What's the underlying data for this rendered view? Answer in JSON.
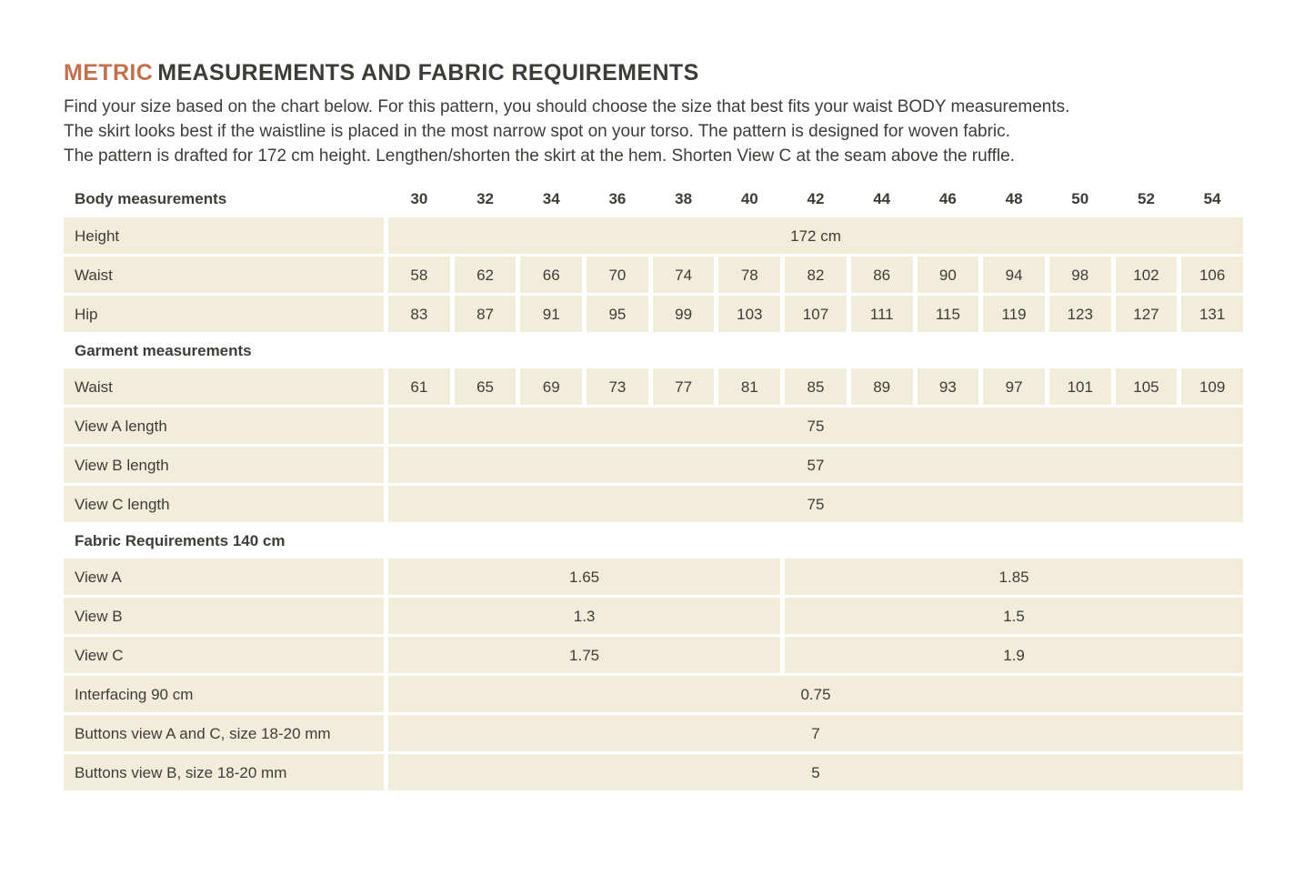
{
  "colors": {
    "accent": "#c1714e",
    "cell_bg": "#f2ecda",
    "text": "#3e3c38"
  },
  "header": {
    "title_accent": "METRIC",
    "title_rest": "MEASUREMENTS AND FABRIC REQUIREMENTS",
    "intro_lines": [
      "Find your size based on the chart below. For this pattern, you should choose the size that best fits your waist BODY measurements.",
      "The skirt looks best if the waistline is placed in the most narrow spot on your torso. The pattern is designed for woven fabric.",
      "The pattern is drafted for 172 cm height. Lengthen/shorten the skirt at the hem. Shorten View C at the seam above the ruffle."
    ]
  },
  "table": {
    "section_headers": {
      "body": "Body measurements",
      "garment": "Garment measurements",
      "fabric": "Fabric Requirements 140 cm"
    },
    "sizes": [
      "30",
      "32",
      "34",
      "36",
      "38",
      "40",
      "42",
      "44",
      "46",
      "48",
      "50",
      "52",
      "54"
    ],
    "rows": {
      "height": {
        "label": "Height",
        "value": "172 cm"
      },
      "body_waist": {
        "label": "Waist",
        "values": [
          "58",
          "62",
          "66",
          "70",
          "74",
          "78",
          "82",
          "86",
          "90",
          "94",
          "98",
          "102",
          "106"
        ]
      },
      "body_hip": {
        "label": "Hip",
        "values": [
          "83",
          "87",
          "91",
          "95",
          "99",
          "103",
          "107",
          "111",
          "115",
          "119",
          "123",
          "127",
          "131"
        ]
      },
      "garment_waist": {
        "label": "Waist",
        "values": [
          "61",
          "65",
          "69",
          "73",
          "77",
          "81",
          "85",
          "89",
          "93",
          "97",
          "101",
          "105",
          "109"
        ]
      },
      "view_a_length": {
        "label": "View A length",
        "value": "75"
      },
      "view_b_length": {
        "label": "View B length",
        "value": "57"
      },
      "view_c_length": {
        "label": "View C length",
        "value": "75"
      },
      "fabric_view_a": {
        "label": "View A",
        "sizes_30_40": "1.65",
        "sizes_42_54": "1.85"
      },
      "fabric_view_b": {
        "label": "View B",
        "sizes_30_40": "1.3",
        "sizes_42_54": "1.5"
      },
      "fabric_view_c": {
        "label": "View C",
        "sizes_30_40": "1.75",
        "sizes_42_54": "1.9"
      },
      "interfacing": {
        "label": "Interfacing 90 cm",
        "value": "0.75"
      },
      "buttons_ac": {
        "label": "Buttons view A and C, size 18-20 mm",
        "value": "7"
      },
      "buttons_b": {
        "label": "Buttons view B, size 18-20 mm",
        "value": "5"
      }
    }
  }
}
